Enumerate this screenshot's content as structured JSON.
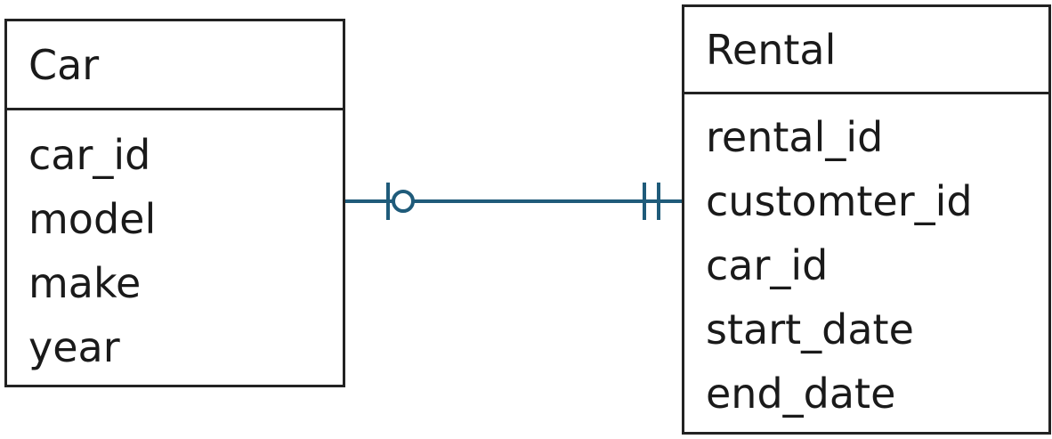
{
  "entities": {
    "car": {
      "name": "Car",
      "attributes": [
        "car_id",
        "model",
        "make",
        "year"
      ]
    },
    "rental": {
      "name": "Rental",
      "attributes": [
        "rental_id",
        "customter_id",
        "car_id",
        "start_date",
        "end_date"
      ]
    }
  },
  "relationship": {
    "from": "Car",
    "to": "Rental",
    "from_cardinality": "zero-or-one",
    "to_cardinality": "exactly-one",
    "line_color": "#1f5b7a"
  }
}
